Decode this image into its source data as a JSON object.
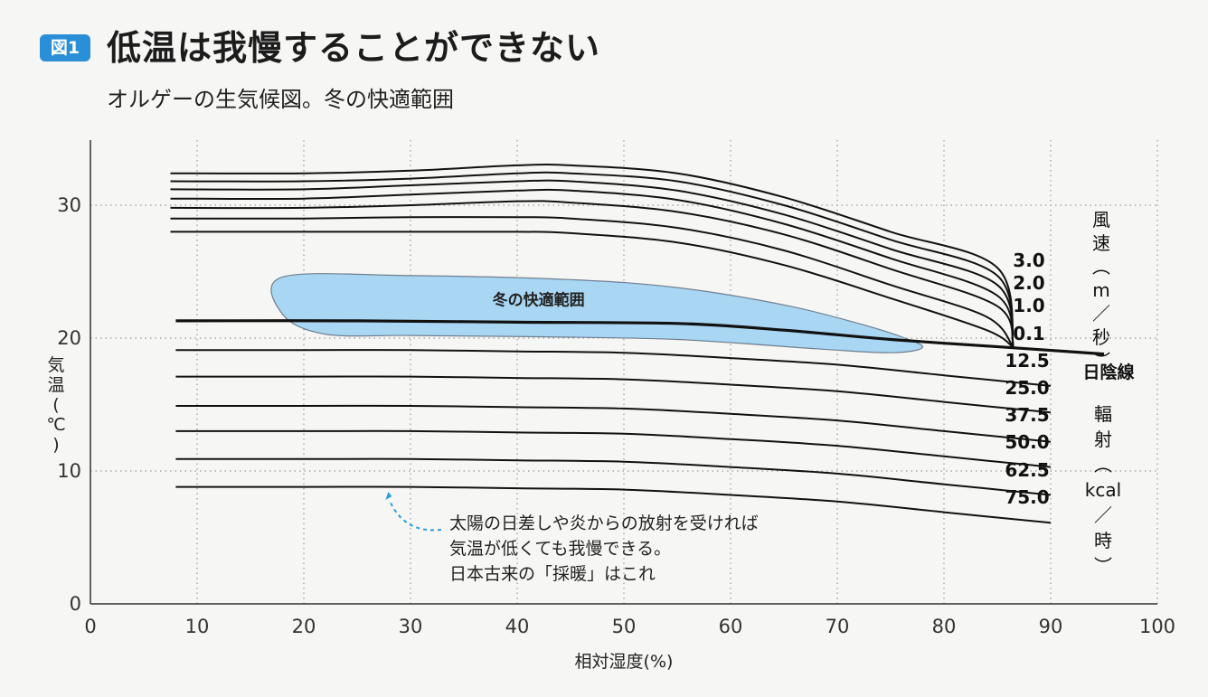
{
  "figure": {
    "badge": "図1",
    "title": "低温は我慢することができない",
    "subtitle": "オルゲーの生気候図。冬の快適範囲"
  },
  "chart_data": {
    "type": "line",
    "title": "低温は我慢することができない",
    "subtitle": "オルゲーの生気候図。冬の快適範囲",
    "xlabel": "相対湿度(%)",
    "ylabel": "気温(℃)",
    "xlim": [
      0,
      100
    ],
    "ylim": [
      0,
      35
    ],
    "x_ticks": [
      "0",
      "10",
      "20",
      "30",
      "40",
      "50",
      "60",
      "70",
      "80",
      "90",
      "100"
    ],
    "y_ticks": [
      "0",
      "10",
      "20",
      "30"
    ],
    "grid": "dotted",
    "comfort_zone": {
      "label": "冬の快適範囲",
      "outline": [
        [
          18,
          24.6
        ],
        [
          30,
          24.7
        ],
        [
          45,
          24.4
        ],
        [
          55,
          23.8
        ],
        [
          65,
          22.5
        ],
        [
          72,
          21.1
        ],
        [
          76,
          20.1
        ],
        [
          78,
          19.3
        ],
        [
          75,
          18.9
        ],
        [
          68,
          19.2
        ],
        [
          55,
          19.9
        ],
        [
          42,
          20.1
        ],
        [
          30,
          20.2
        ],
        [
          22,
          20.3
        ],
        [
          18,
          21.8
        ]
      ]
    },
    "wind_speed_unit": "風速(m/秒)",
    "wind_lines": [
      {
        "name": "0.1",
        "x": [
          7.5,
          20,
          30,
          40,
          45,
          55,
          65,
          75,
          84,
          86.5
        ],
        "y": [
          28,
          28,
          28,
          28,
          27.9,
          27.2,
          25.5,
          23,
          20.6,
          19.3
        ]
      },
      {
        "name": "",
        "x": [
          7.5,
          20,
          30,
          40,
          45,
          55,
          65,
          75,
          84,
          86.5
        ],
        "y": [
          29,
          29,
          29.1,
          29.1,
          29,
          28.3,
          26.6,
          24,
          21.6,
          19.3
        ]
      },
      {
        "name": "1.0",
        "x": [
          7.5,
          20,
          30,
          40,
          45,
          55,
          65,
          75,
          85,
          86.5
        ],
        "y": [
          29.8,
          29.8,
          30,
          30.3,
          30.2,
          29.5,
          27.8,
          25.2,
          22.4,
          19.3
        ]
      },
      {
        "name": "",
        "x": [
          7.5,
          20,
          30,
          40,
          45,
          55,
          65,
          75,
          85,
          86.5
        ],
        "y": [
          30.5,
          30.5,
          30.8,
          31.1,
          31.1,
          30.4,
          28.6,
          26,
          23.2,
          19.3
        ]
      },
      {
        "name": "2.0",
        "x": [
          7.5,
          20,
          30,
          40,
          45,
          55,
          65,
          75,
          85,
          86.5
        ],
        "y": [
          31.2,
          31.2,
          31.5,
          31.8,
          31.8,
          31.1,
          29.3,
          26.7,
          24,
          19.3
        ]
      },
      {
        "name": "",
        "x": [
          7.5,
          20,
          30,
          40,
          45,
          55,
          65,
          75,
          85,
          86.5
        ],
        "y": [
          31.8,
          31.8,
          32,
          32.4,
          32.4,
          31.8,
          30,
          27.4,
          24.7,
          19.3
        ]
      },
      {
        "name": "3.0",
        "x": [
          7.5,
          20,
          30,
          40,
          45,
          55,
          65,
          75,
          85,
          86.5
        ],
        "y": [
          32.4,
          32.4,
          32.6,
          33,
          33,
          32.4,
          30.6,
          28,
          25.3,
          19.3
        ]
      }
    ],
    "shade_line": {
      "name": "日陰線",
      "x": [
        8,
        25,
        40,
        55,
        65,
        75,
        86,
        95
      ],
      "y": [
        21.3,
        21.3,
        21.2,
        21.1,
        20.6,
        19.9,
        19.3,
        18.8
      ]
    },
    "radiation_unit": "輻射(kcal/時)",
    "radiation_lines": [
      {
        "name": "12.5",
        "x": [
          8,
          20,
          30,
          40,
          50,
          60,
          70,
          80,
          90
        ],
        "y": [
          19.1,
          19.1,
          19.1,
          19,
          18.9,
          18.5,
          18,
          17.2,
          16.4
        ]
      },
      {
        "name": "25.0",
        "x": [
          8,
          20,
          30,
          40,
          50,
          60,
          70,
          80,
          90
        ],
        "y": [
          17.1,
          17.1,
          17.1,
          17,
          16.9,
          16.5,
          16,
          15.2,
          14.4
        ]
      },
      {
        "name": "37.5",
        "x": [
          8,
          20,
          30,
          40,
          50,
          60,
          70,
          80,
          90
        ],
        "y": [
          14.9,
          14.9,
          14.9,
          14.8,
          14.7,
          14.3,
          13.8,
          13,
          12.2
        ]
      },
      {
        "name": "50.0",
        "x": [
          8,
          20,
          30,
          40,
          50,
          60,
          70,
          80,
          90
        ],
        "y": [
          13,
          13,
          13,
          12.9,
          12.8,
          12.4,
          11.9,
          11.1,
          10.3
        ]
      },
      {
        "name": "62.5",
        "x": [
          8,
          20,
          30,
          40,
          50,
          60,
          70,
          80,
          90
        ],
        "y": [
          10.9,
          10.9,
          10.9,
          10.8,
          10.7,
          10.3,
          9.8,
          9,
          8.2
        ]
      },
      {
        "name": "75.0",
        "x": [
          8,
          20,
          30,
          40,
          50,
          60,
          70,
          80,
          90
        ],
        "y": [
          8.8,
          8.8,
          8.8,
          8.7,
          8.6,
          8.2,
          7.7,
          6.9,
          6.1
        ]
      }
    ],
    "annotation": {
      "lines": [
        "太陽の日差しや炎からの放射を受ければ",
        "気温が低くても我慢できる。",
        "日本古来の「採暖」はこれ"
      ],
      "points_to": [
        28,
        8.5
      ]
    },
    "colors": {
      "curve": "#111111",
      "zone_fill": "#a9d6f3",
      "zone_edge": "#6f7f8f",
      "grid": "#9a9a9a",
      "annotation_arrow": "#2a9fd8",
      "badge": "#2a8fd6"
    }
  }
}
